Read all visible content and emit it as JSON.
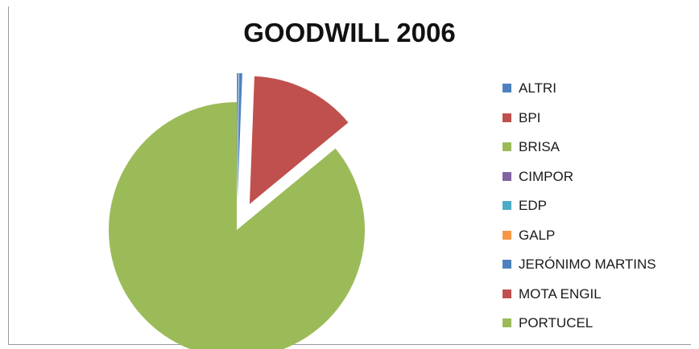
{
  "chart_data": {
    "type": "pie",
    "title": "GOODWILL 2006",
    "legend_position": "right",
    "slices": [
      {
        "label": "ALTRI",
        "value": 0.2,
        "color": "#4f81bd"
      },
      {
        "label": "BPI",
        "value": 0,
        "color": "#c0504d"
      },
      {
        "label": "BRISA",
        "value": 0,
        "color": "#9bbb59"
      },
      {
        "label": "CIMPOR",
        "value": 0,
        "color": "#8064a2"
      },
      {
        "label": "EDP",
        "value": 0,
        "color": "#4bacc6"
      },
      {
        "label": "GALP",
        "value": 0,
        "color": "#f79646"
      },
      {
        "label": "JERÓNIMO MARTINS",
        "value": 0.4,
        "color": "#4f81bd"
      },
      {
        "label": "MOTA ENGIL",
        "value": 13.4,
        "color": "#c0504d"
      },
      {
        "label": "PORTUCEL",
        "value": 86.0,
        "color": "#9bbb59"
      }
    ]
  }
}
